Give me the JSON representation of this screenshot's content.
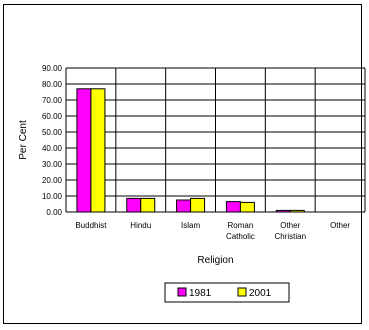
{
  "chart_data": {
    "type": "bar",
    "title": "",
    "xlabel": "Religion",
    "ylabel": "Per Cent",
    "ylim": [
      0,
      90
    ],
    "yticks": [
      "0.00",
      "10.00",
      "20.00",
      "30.00",
      "40.00",
      "50.00",
      "60.00",
      "70.00",
      "80.00",
      "90.00"
    ],
    "grid": true,
    "legend_position": "bottom",
    "categories": [
      [
        "Buddhist"
      ],
      [
        "Hindu"
      ],
      [
        "Islam"
      ],
      [
        "Roman",
        "Catholic"
      ],
      [
        "Other",
        "Christian"
      ],
      [
        "Other"
      ]
    ],
    "series": [
      {
        "name": "1981",
        "color": "#ff00ff",
        "values": [
          77.0,
          8.5,
          7.5,
          6.5,
          1.0,
          0.0
        ]
      },
      {
        "name": "2001",
        "color": "#ffff00",
        "values": [
          77.0,
          8.5,
          8.5,
          6.0,
          1.0,
          0.0
        ]
      }
    ]
  }
}
